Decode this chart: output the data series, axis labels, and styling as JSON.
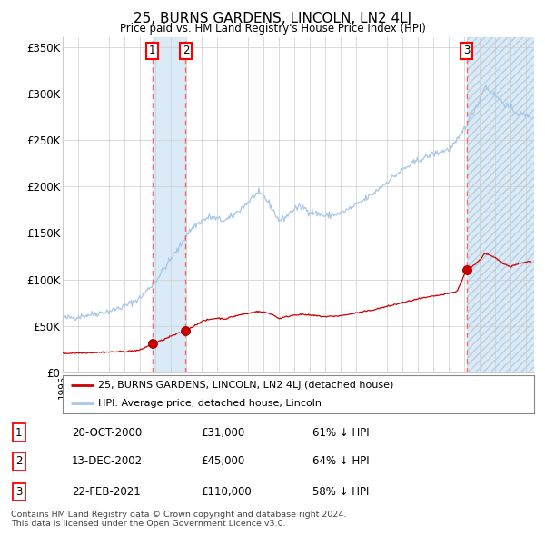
{
  "title": "25, BURNS GARDENS, LINCOLN, LN2 4LJ",
  "subtitle": "Price paid vs. HM Land Registry's House Price Index (HPI)",
  "ylim": [
    0,
    360000
  ],
  "yticks": [
    0,
    50000,
    100000,
    150000,
    200000,
    250000,
    300000,
    350000
  ],
  "ytick_labels": [
    "£0",
    "£50K",
    "£100K",
    "£150K",
    "£200K",
    "£250K",
    "£300K",
    "£350K"
  ],
  "sale_year_floats": [
    2000.8,
    2002.96,
    2021.13
  ],
  "sale_prices": [
    31000,
    45000,
    110000
  ],
  "sale_labels": [
    "1",
    "2",
    "3"
  ],
  "legend_red": "25, BURNS GARDENS, LINCOLN, LN2 4LJ (detached house)",
  "legend_blue": "HPI: Average price, detached house, Lincoln",
  "table_rows": [
    [
      "1",
      "20-OCT-2000",
      "£31,000",
      "61% ↓ HPI"
    ],
    [
      "2",
      "13-DEC-2002",
      "£45,000",
      "64% ↓ HPI"
    ],
    [
      "3",
      "22-FEB-2021",
      "£110,000",
      "58% ↓ HPI"
    ]
  ],
  "footnote": "Contains HM Land Registry data © Crown copyright and database right 2024.\nThis data is licensed under the Open Government Licence v3.0.",
  "hpi_color": "#a8c8e8",
  "price_color": "#cc0000",
  "background_color": "#ffffff",
  "grid_color": "#cccccc",
  "shade_color": "#daeaf7",
  "xmin": 1995,
  "xmax": 2025.5
}
